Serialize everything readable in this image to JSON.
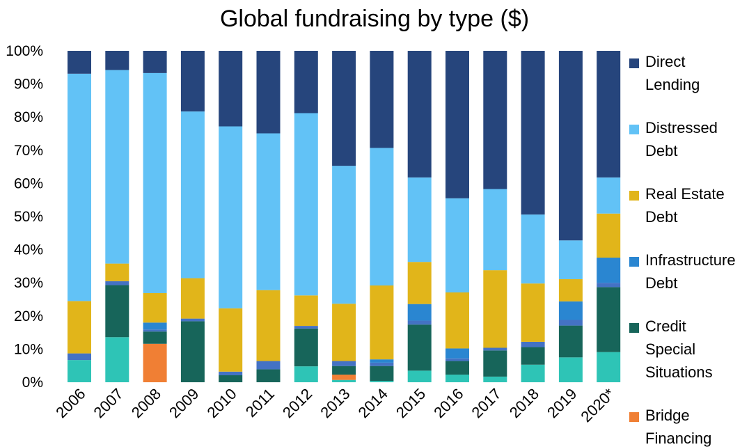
{
  "chart_data": {
    "type": "bar",
    "stacked": true,
    "normalized": true,
    "title": "Global fundraising by type ($)",
    "xlabel": "",
    "ylabel": "",
    "ylim": [
      0,
      100
    ],
    "yticks": [
      "0%",
      "10%",
      "20%",
      "30%",
      "40%",
      "50%",
      "60%",
      "70%",
      "80%",
      "90%",
      "100%"
    ],
    "grid": false,
    "legend_position": "right",
    "categories": [
      "2006",
      "2007",
      "2008",
      "2009",
      "2010",
      "2011",
      "2012",
      "2013",
      "2014",
      "2015",
      "2016",
      "2017",
      "2018",
      "2019",
      "2020*"
    ],
    "series": [
      {
        "key": "s0",
        "color": "#2ec4b6",
        "values": [
          6.7,
          13.6,
          0,
          0,
          0,
          0,
          4.8,
          0.7,
          0.4,
          3.5,
          2.3,
          1.7,
          5.3,
          7.5,
          9.1
        ]
      },
      {
        "key": "s1",
        "color": "#f07f34",
        "values": [
          0,
          0,
          11.6,
          0,
          0,
          0,
          0,
          1.6,
          0,
          0,
          0,
          0,
          0,
          0,
          0
        ]
      },
      {
        "key": "s2",
        "color": "#17655a",
        "values": [
          0,
          15.7,
          3.7,
          18.4,
          2.1,
          3.9,
          11.4,
          2.6,
          4.5,
          13.9,
          4.1,
          7.9,
          5.3,
          9.6,
          19.6
        ]
      },
      {
        "key": "s3",
        "color": "#4472c4",
        "values": [
          2.0,
          1.2,
          0.6,
          0.8,
          1.1,
          2.5,
          0.8,
          1.5,
          1.0,
          1.2,
          0.8,
          0.8,
          1.6,
          1.7,
          1.3
        ]
      },
      {
        "key": "s4",
        "color": "#2a86d1",
        "values": [
          0,
          0,
          2.1,
          0,
          0,
          0,
          0,
          0,
          1.0,
          5.0,
          3.0,
          0,
          0,
          5.6,
          7.6
        ]
      },
      {
        "key": "s5",
        "color": "#e1b51a",
        "values": [
          15.8,
          5.3,
          8.9,
          12.2,
          19.1,
          21.4,
          9.2,
          17.3,
          22.3,
          12.7,
          16.9,
          23.4,
          17.6,
          6.7,
          13.3
        ]
      },
      {
        "key": "s6",
        "color": "#62c2f6",
        "values": [
          68.6,
          58.4,
          66.4,
          50.3,
          54.9,
          47.3,
          55.0,
          41.6,
          41.5,
          25.5,
          28.4,
          24.5,
          20.8,
          11.7,
          10.9
        ]
      },
      {
        "key": "s7",
        "color": "#26457c",
        "values": [
          6.9,
          5.8,
          6.7,
          18.3,
          22.8,
          24.9,
          18.8,
          34.7,
          29.3,
          38.2,
          44.5,
          41.7,
          49.4,
          57.2,
          38.2
        ]
      }
    ],
    "legend": [
      {
        "key": "s7",
        "lines": [
          "Direct",
          "Lending"
        ]
      },
      {
        "key": "s6",
        "lines": [
          "Distressed",
          "Debt"
        ]
      },
      {
        "key": "s5",
        "lines": [
          "Real Estate",
          "Debt"
        ]
      },
      {
        "key": "s4",
        "lines": [
          "Infrastructure",
          "Debt"
        ]
      },
      {
        "key": "s2",
        "lines": [
          "Credit",
          "Special",
          "Situations"
        ]
      },
      {
        "key": "s1",
        "lines": [
          "Bridge",
          "Financing"
        ]
      }
    ]
  }
}
